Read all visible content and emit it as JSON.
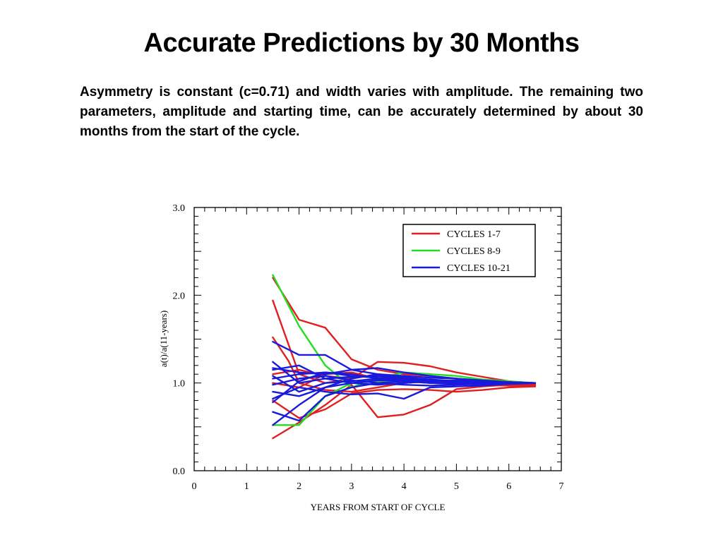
{
  "slide": {
    "title": "Accurate Predictions by 30 Months",
    "body": "Asymmetry is constant (c=0.71) and width varies with amplitude. The remaining two parameters, amplitude and starting time, can be accurately determined by about 30 months from the start of the cycle."
  },
  "chart_data": {
    "type": "line",
    "xlabel": "YEARS FROM START OF CYCLE",
    "ylabel": "a(t)/a(11-years)",
    "xlim": [
      0,
      7
    ],
    "ylim": [
      0,
      3
    ],
    "x_ticks": [
      "0",
      "1",
      "2",
      "3",
      "4",
      "5",
      "6",
      "7"
    ],
    "y_ticks": [
      "0.0",
      "1.0",
      "2.0",
      "3.0"
    ],
    "y_tick_values": [
      0,
      1,
      2,
      3
    ],
    "grid": false,
    "legend_position": "top-right",
    "legend": [
      {
        "label": "CYCLES 1-7",
        "color": "#e02020"
      },
      {
        "label": "CYCLES 8-9",
        "color": "#22dd22"
      },
      {
        "label": "CYCLES 10-21",
        "color": "#1a1adc"
      }
    ],
    "series": [
      {
        "group": "CYCLES 1-7",
        "color": "#e02020",
        "x": [
          1.5,
          2.0,
          2.5,
          3.0,
          3.5,
          4.0,
          4.5,
          5.0,
          5.5,
          6.0,
          6.5
        ],
        "y": [
          2.2,
          1.72,
          1.63,
          1.27,
          1.15,
          1.1,
          1.08,
          1.05,
          1.02,
          1.0,
          0.98
        ]
      },
      {
        "group": "CYCLES 1-7",
        "color": "#e02020",
        "x": [
          1.5,
          2.0,
          2.5,
          3.0,
          3.5,
          4.0,
          4.5,
          5.0,
          5.5,
          6.0,
          6.5
        ],
        "y": [
          1.94,
          1.1,
          1.0,
          1.05,
          1.24,
          1.23,
          1.19,
          1.12,
          1.07,
          1.02,
          0.99
        ]
      },
      {
        "group": "CYCLES 1-7",
        "color": "#e02020",
        "x": [
          1.5,
          1.8,
          2.0,
          2.5,
          3.0,
          3.5,
          4.0,
          4.5,
          5.0,
          5.5,
          6.0,
          6.5
        ],
        "y": [
          1.52,
          1.25,
          1.0,
          0.92,
          0.9,
          0.95,
          1.0,
          1.02,
          1.0,
          0.98,
          0.97,
          0.96
        ]
      },
      {
        "group": "CYCLES 1-7",
        "color": "#e02020",
        "x": [
          1.5,
          2.0,
          2.5,
          3.0,
          3.5,
          4.0,
          4.5,
          5.0,
          5.5,
          6.0,
          6.5
        ],
        "y": [
          0.37,
          0.55,
          0.75,
          0.98,
          0.61,
          0.64,
          0.75,
          0.93,
          0.96,
          0.98,
          0.98
        ]
      },
      {
        "group": "CYCLES 1-7",
        "color": "#e02020",
        "x": [
          1.5,
          2.0,
          2.5,
          3.0,
          3.5,
          4.0,
          4.5,
          5.0,
          5.5,
          6.0,
          6.5
        ],
        "y": [
          1.1,
          1.15,
          1.08,
          1.05,
          1.1,
          1.05,
          1.0,
          1.0,
          0.98,
          0.97,
          0.97
        ]
      },
      {
        "group": "CYCLES 1-7",
        "color": "#e02020",
        "x": [
          1.5,
          2.0,
          2.5,
          3.0,
          3.5,
          4.0,
          4.5,
          5.0,
          5.5,
          6.0,
          6.5
        ],
        "y": [
          0.8,
          0.6,
          0.7,
          0.88,
          0.92,
          0.93,
          0.92,
          0.9,
          0.92,
          0.95,
          0.96
        ]
      },
      {
        "group": "CYCLES 1-7",
        "color": "#e02020",
        "x": [
          1.5,
          2.0,
          2.5,
          3.0,
          3.5,
          4.0,
          4.5,
          5.0,
          5.5,
          6.0,
          6.5
        ],
        "y": [
          1.0,
          0.95,
          1.1,
          1.12,
          1.05,
          1.0,
          1.02,
          1.0,
          0.99,
          0.98,
          0.99
        ]
      },
      {
        "group": "CYCLES 8-9",
        "color": "#22dd22",
        "x": [
          1.5,
          2.0,
          2.5,
          3.0,
          3.5,
          4.0,
          4.5,
          5.0,
          5.5,
          6.0,
          6.5
        ],
        "y": [
          2.23,
          1.65,
          1.2,
          0.95,
          1.05,
          1.12,
          1.1,
          1.08,
          1.04,
          1.02,
          1.0
        ]
      },
      {
        "group": "CYCLES 8-9",
        "color": "#22dd22",
        "x": [
          1.5,
          2.0,
          2.5,
          3.0,
          3.5,
          4.0,
          4.5,
          5.0,
          5.5,
          6.0,
          6.5
        ],
        "y": [
          0.52,
          0.52,
          0.85,
          1.0,
          1.02,
          1.03,
          1.02,
          1.01,
          1.0,
          1.0,
          1.0
        ]
      },
      {
        "group": "CYCLES 10-21",
        "color": "#1a1adc",
        "x": [
          1.5,
          2.0,
          2.5,
          3.0,
          3.5,
          4.0,
          4.5,
          5.0,
          5.5,
          6.0,
          6.5
        ],
        "y": [
          1.47,
          1.32,
          1.32,
          1.15,
          1.1,
          1.08,
          1.06,
          1.05,
          1.03,
          1.01,
          1.0
        ]
      },
      {
        "group": "CYCLES 10-21",
        "color": "#1a1adc",
        "x": [
          1.5,
          2.0,
          2.5,
          3.0,
          3.5,
          4.0,
          4.5,
          5.0,
          5.5,
          6.0,
          6.5
        ],
        "y": [
          1.24,
          1.0,
          1.05,
          1.07,
          1.08,
          1.06,
          1.04,
          1.02,
          1.01,
          1.0,
          1.0
        ]
      },
      {
        "group": "CYCLES 10-21",
        "color": "#1a1adc",
        "x": [
          1.5,
          2.0,
          2.5,
          3.0,
          3.5,
          4.0,
          4.5,
          5.0,
          5.5,
          6.0,
          6.5
        ],
        "y": [
          1.17,
          1.12,
          1.1,
          1.15,
          1.17,
          1.12,
          1.08,
          1.05,
          1.02,
          1.01,
          1.0
        ]
      },
      {
        "group": "CYCLES 10-21",
        "color": "#1a1adc",
        "x": [
          1.5,
          2.0,
          2.5,
          3.0,
          3.5,
          4.0,
          4.5,
          5.0,
          5.5,
          6.0,
          6.5
        ],
        "y": [
          1.08,
          0.9,
          1.0,
          1.02,
          1.05,
          1.03,
          1.02,
          1.01,
          1.0,
          1.0,
          1.0
        ]
      },
      {
        "group": "CYCLES 10-21",
        "color": "#1a1adc",
        "x": [
          1.5,
          2.0,
          2.5,
          3.0,
          3.5,
          4.0,
          4.5,
          5.0,
          5.5,
          6.0,
          6.5
        ],
        "y": [
          0.98,
          1.05,
          1.08,
          1.03,
          1.0,
          0.98,
          0.97,
          0.98,
          0.99,
          1.0,
          1.0
        ]
      },
      {
        "group": "CYCLES 10-21",
        "color": "#1a1adc",
        "x": [
          1.5,
          2.0,
          2.5,
          3.0,
          3.5,
          4.0,
          4.5,
          5.0,
          5.5,
          6.0,
          6.5
        ],
        "y": [
          0.9,
          0.85,
          0.95,
          1.05,
          1.1,
          1.07,
          1.03,
          1.0,
          0.98,
          0.99,
          1.0
        ]
      },
      {
        "group": "CYCLES 10-21",
        "color": "#1a1adc",
        "x": [
          1.5,
          2.0,
          2.5,
          3.0,
          3.5,
          4.0,
          4.5,
          5.0,
          5.5,
          6.0,
          6.5
        ],
        "y": [
          0.78,
          1.02,
          1.12,
          1.1,
          1.05,
          1.02,
          1.0,
          0.99,
          0.99,
          1.0,
          1.0
        ]
      },
      {
        "group": "CYCLES 10-21",
        "color": "#1a1adc",
        "x": [
          1.5,
          2.0,
          2.5,
          3.0,
          3.5,
          4.0,
          4.5,
          5.0,
          5.5,
          6.0,
          6.5
        ],
        "y": [
          0.67,
          0.57,
          0.85,
          0.95,
          1.0,
          1.02,
          1.0,
          0.99,
          0.98,
          0.99,
          1.0
        ]
      },
      {
        "group": "CYCLES 10-21",
        "color": "#1a1adc",
        "x": [
          1.5,
          2.0,
          2.5,
          3.0,
          3.5,
          4.0,
          4.5,
          5.0,
          5.5,
          6.0,
          6.5
        ],
        "y": [
          0.52,
          0.75,
          0.95,
          1.0,
          1.03,
          1.03,
          1.02,
          1.01,
          1.0,
          1.0,
          1.0
        ]
      },
      {
        "group": "CYCLES 10-21",
        "color": "#1a1adc",
        "x": [
          1.5,
          2.0,
          2.5,
          3.0,
          3.5,
          4.0,
          4.5,
          5.0,
          5.5,
          6.0,
          6.5
        ],
        "y": [
          1.05,
          1.1,
          1.12,
          1.08,
          1.06,
          1.05,
          1.03,
          1.02,
          1.01,
          1.0,
          1.0
        ]
      },
      {
        "group": "CYCLES 10-21",
        "color": "#1a1adc",
        "x": [
          1.5,
          2.0,
          2.5,
          3.0,
          3.5,
          4.0,
          4.5,
          5.0,
          5.5,
          6.0,
          6.5
        ],
        "y": [
          0.82,
          0.95,
          0.9,
          0.87,
          0.88,
          0.82,
          0.95,
          0.96,
          0.97,
          0.99,
          1.0
        ]
      },
      {
        "group": "CYCLES 10-21",
        "color": "#1a1adc",
        "x": [
          1.5,
          2.0,
          2.5,
          3.0,
          3.5,
          4.0,
          4.5,
          5.0,
          5.5,
          6.0,
          6.5
        ],
        "y": [
          1.15,
          1.2,
          1.05,
          1.0,
          0.98,
          1.0,
          1.02,
          1.03,
          1.01,
          1.0,
          1.0
        ]
      }
    ]
  }
}
